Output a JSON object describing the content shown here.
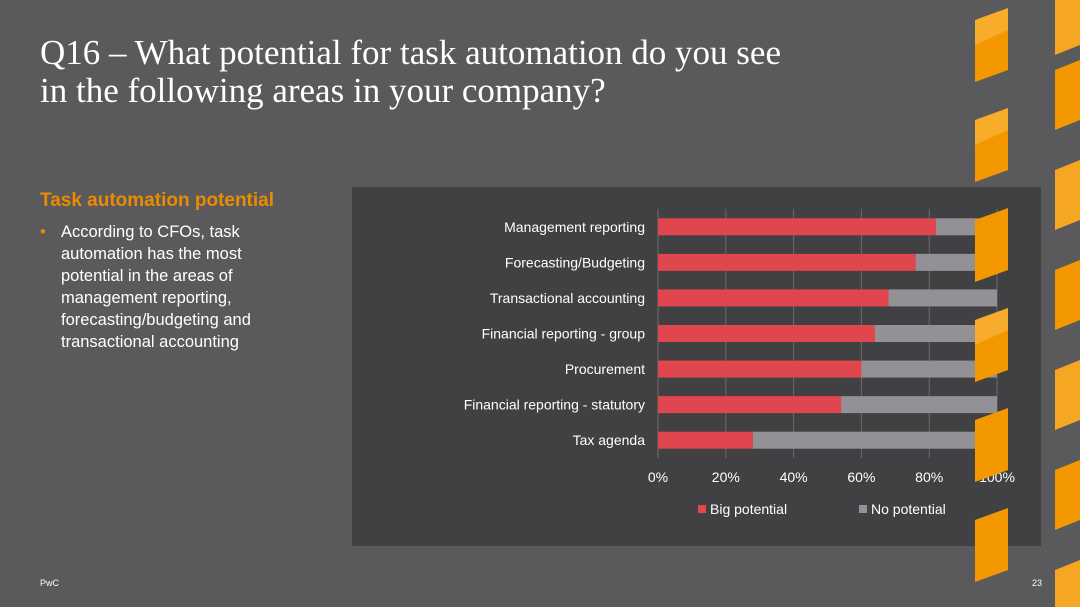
{
  "slide": {
    "title_line1": "Q16 – What potential for task automation do you see",
    "title_line2": "in the following areas in your company?",
    "section_heading": "Task automation potential",
    "bullet": "According to CFOs, task automation has the most potential in the areas of management reporting, forecasting/budgeting and transactional accounting",
    "footer_brand": "PwC",
    "page_number": "23"
  },
  "colors": {
    "accent_orange": "#eb8c00",
    "big_potential": "#e0464e",
    "no_potential": "#939196",
    "panel_bg": "#414042",
    "slide_bg": "#5a595c"
  },
  "chart_data": {
    "type": "bar",
    "orientation": "horizontal",
    "stacked": true,
    "categories": [
      "Management reporting",
      "Forecasting/Budgeting",
      "Transactional accounting",
      "Financial reporting - group",
      "Procurement",
      "Financial reporting - statutory",
      "Tax agenda"
    ],
    "series": [
      {
        "name": "Big potential",
        "color": "#e0464e",
        "values": [
          82,
          76,
          68,
          64,
          60,
          54,
          28
        ]
      },
      {
        "name": "No potential",
        "color": "#939196",
        "values": [
          18,
          24,
          32,
          36,
          40,
          46,
          72
        ]
      }
    ],
    "xlim": [
      0,
      100
    ],
    "xticks": [
      "0%",
      "20%",
      "40%",
      "60%",
      "80%",
      "100%"
    ],
    "grid": true,
    "legend": "bottom"
  }
}
